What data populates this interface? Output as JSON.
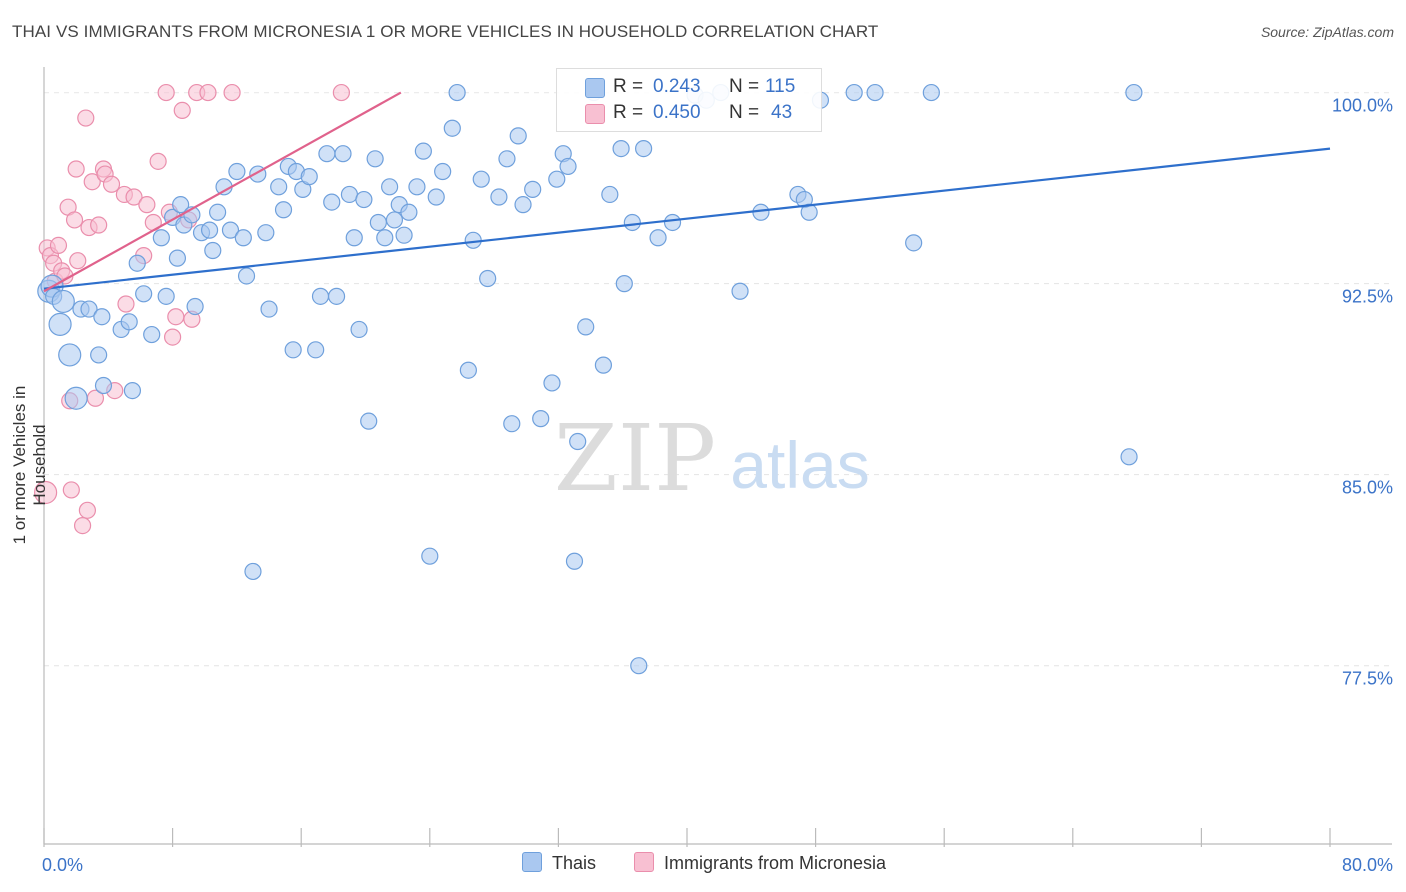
{
  "header": {
    "title": "THAI VS IMMIGRANTS FROM MICRONESIA 1 OR MORE VEHICLES IN HOUSEHOLD CORRELATION CHART",
    "source": "Source: ZipAtlas.com"
  },
  "legend_top": {
    "rows": [
      {
        "r_label": "R =",
        "r_value": "0.243",
        "n_label": "N =",
        "n_value": "115"
      },
      {
        "r_label": "R =",
        "r_value": "0.450",
        "n_label": "N =",
        "n_value": "43"
      }
    ]
  },
  "legend_bottom": {
    "items": [
      "Thais",
      "Immigrants from Micronesia"
    ]
  },
  "watermark": {
    "zip": "ZIP",
    "atlas": "atlas"
  },
  "colors": {
    "thais_fill": "#aac8f0",
    "thais_stroke": "#6fa0dc",
    "thais_line": "#2e6fcc",
    "micro_fill": "#f8c0d2",
    "micro_stroke": "#ea8eac",
    "micro_line": "#e0628c",
    "axis_text": "#3b73c8",
    "grid": "#e4e4e4"
  },
  "chart_data": {
    "type": "scatter",
    "title": "THAI VS IMMIGRANTS FROM MICRONESIA 1 OR MORE VEHICLES IN HOUSEHOLD CORRELATION CHART",
    "xlabel": "",
    "ylabel": "1 or more Vehicles in Household",
    "xlim": [
      0,
      80
    ],
    "ylim": [
      70.5,
      101.2
    ],
    "x_tick_labels": [
      "0.0%",
      "80.0%"
    ],
    "y_ticks": [
      77.5,
      85.0,
      92.5,
      100.0
    ],
    "y_tick_labels": [
      "77.5%",
      "85.0%",
      "92.5%",
      "100.0%"
    ],
    "series": [
      {
        "name": "Thais",
        "r": 0.243,
        "n": 115,
        "trend": {
          "x": [
            0,
            80
          ],
          "y": [
            92.3,
            97.8
          ]
        },
        "points": [
          [
            0.3,
            92.2,
            2
          ],
          [
            0.5,
            92.4,
            2
          ],
          [
            0.6,
            92.0,
            1
          ],
          [
            1.0,
            90.9,
            2
          ],
          [
            1.2,
            91.8,
            2
          ],
          [
            1.6,
            89.7,
            2
          ],
          [
            2.0,
            88.0,
            2
          ],
          [
            2.3,
            91.5,
            1
          ],
          [
            2.8,
            91.5,
            1
          ],
          [
            3.4,
            89.7,
            1
          ],
          [
            3.6,
            91.2,
            1
          ],
          [
            3.7,
            88.5,
            1
          ],
          [
            4.8,
            90.7,
            1
          ],
          [
            5.3,
            91.0,
            1
          ],
          [
            5.5,
            88.3,
            1
          ],
          [
            5.8,
            93.3,
            1
          ],
          [
            6.2,
            92.1,
            1
          ],
          [
            6.7,
            90.5,
            1
          ],
          [
            7.3,
            94.3,
            1
          ],
          [
            7.6,
            92.0,
            1
          ],
          [
            8.0,
            95.1,
            1
          ],
          [
            8.3,
            93.5,
            1
          ],
          [
            8.5,
            95.6,
            1
          ],
          [
            8.7,
            94.8,
            1
          ],
          [
            9.2,
            95.2,
            1
          ],
          [
            9.4,
            91.6,
            1
          ],
          [
            9.8,
            94.5,
            1
          ],
          [
            10.3,
            94.6,
            1
          ],
          [
            10.5,
            93.8,
            1
          ],
          [
            10.8,
            95.3,
            1
          ],
          [
            11.2,
            96.3,
            1
          ],
          [
            11.6,
            94.6,
            1
          ],
          [
            12.0,
            96.9,
            1
          ],
          [
            12.4,
            94.3,
            1
          ],
          [
            12.6,
            92.8,
            1
          ],
          [
            13.3,
            96.8,
            1
          ],
          [
            13.8,
            94.5,
            1
          ],
          [
            14.0,
            91.5,
            1
          ],
          [
            14.6,
            96.3,
            1
          ],
          [
            14.9,
            95.4,
            1
          ],
          [
            15.2,
            97.1,
            1
          ],
          [
            15.5,
            89.9,
            1
          ],
          [
            15.7,
            96.9,
            1
          ],
          [
            16.1,
            96.2,
            1
          ],
          [
            16.5,
            96.7,
            1
          ],
          [
            16.9,
            89.9,
            1
          ],
          [
            17.2,
            92.0,
            1
          ],
          [
            17.6,
            97.6,
            1
          ],
          [
            17.9,
            95.7,
            1
          ],
          [
            18.2,
            92.0,
            1
          ],
          [
            18.6,
            97.6,
            1
          ],
          [
            19.0,
            96.0,
            1
          ],
          [
            19.3,
            94.3,
            1
          ],
          [
            19.6,
            90.7,
            1
          ],
          [
            19.9,
            95.8,
            1
          ],
          [
            20.2,
            87.1,
            1
          ],
          [
            20.6,
            97.4,
            1
          ],
          [
            20.8,
            94.9,
            1
          ],
          [
            21.2,
            94.3,
            1
          ],
          [
            21.5,
            96.3,
            1
          ],
          [
            21.8,
            95.0,
            1
          ],
          [
            22.1,
            95.6,
            1
          ],
          [
            22.4,
            94.4,
            1
          ],
          [
            22.7,
            95.3,
            1
          ],
          [
            23.2,
            96.3,
            1
          ],
          [
            23.6,
            97.7,
            1
          ],
          [
            24.0,
            81.8,
            1
          ],
          [
            24.4,
            95.9,
            1
          ],
          [
            24.8,
            96.9,
            1
          ],
          [
            25.4,
            98.6,
            1
          ],
          [
            25.7,
            100.0,
            1
          ],
          [
            26.4,
            89.1,
            1
          ],
          [
            26.7,
            94.2,
            1
          ],
          [
            27.2,
            96.6,
            1
          ],
          [
            27.6,
            92.7,
            1
          ],
          [
            28.3,
            95.9,
            1
          ],
          [
            28.8,
            97.4,
            1
          ],
          [
            29.1,
            87.0,
            1
          ],
          [
            29.5,
            98.3,
            1
          ],
          [
            29.8,
            95.6,
            1
          ],
          [
            30.4,
            96.2,
            1
          ],
          [
            30.9,
            87.2,
            1
          ],
          [
            31.6,
            88.6,
            1
          ],
          [
            31.9,
            96.6,
            1
          ],
          [
            32.3,
            97.6,
            1
          ],
          [
            32.6,
            97.1,
            1
          ],
          [
            33.2,
            86.3,
            1
          ],
          [
            33.7,
            90.8,
            1
          ],
          [
            34.2,
            100.0,
            1
          ],
          [
            34.8,
            89.3,
            1
          ],
          [
            35.2,
            96.0,
            1
          ],
          [
            35.9,
            97.8,
            1
          ],
          [
            36.1,
            92.5,
            1
          ],
          [
            36.6,
            94.9,
            1
          ],
          [
            37.0,
            77.5,
            1
          ],
          [
            37.3,
            97.8,
            1
          ],
          [
            38.2,
            94.3,
            1
          ],
          [
            39.1,
            94.9,
            1
          ],
          [
            40.5,
            99.9,
            1
          ],
          [
            41.2,
            99.7,
            1
          ],
          [
            42.1,
            100.0,
            1
          ],
          [
            43.3,
            92.2,
            1
          ],
          [
            44.6,
            95.3,
            1
          ],
          [
            46.9,
            96.0,
            1
          ],
          [
            47.3,
            95.8,
            1
          ],
          [
            47.6,
            95.3,
            1
          ],
          [
            48.3,
            99.7,
            1
          ],
          [
            50.4,
            100.0,
            1
          ],
          [
            51.7,
            100.0,
            1
          ],
          [
            54.1,
            94.1,
            1
          ],
          [
            55.2,
            100.0,
            1
          ],
          [
            67.8,
            100.0,
            1
          ],
          [
            67.5,
            85.7,
            1
          ],
          [
            13.0,
            81.2,
            1
          ],
          [
            33.0,
            81.6,
            1
          ]
        ]
      },
      {
        "name": "Immigrants from Micronesia",
        "r": 0.45,
        "n": 43,
        "trend": {
          "x": [
            0,
            22.2
          ],
          "y": [
            92.2,
            100.0
          ]
        },
        "points": [
          [
            0.1,
            84.3,
            2
          ],
          [
            0.2,
            93.9,
            1
          ],
          [
            0.4,
            93.6,
            1
          ],
          [
            0.6,
            93.3,
            1
          ],
          [
            0.7,
            92.6,
            1
          ],
          [
            0.9,
            94.0,
            1
          ],
          [
            1.1,
            93.0,
            1
          ],
          [
            1.3,
            92.8,
            1
          ],
          [
            1.5,
            95.5,
            1
          ],
          [
            1.6,
            87.9,
            1
          ],
          [
            1.7,
            84.4,
            1
          ],
          [
            1.9,
            95.0,
            1
          ],
          [
            2.1,
            93.4,
            1
          ],
          [
            2.4,
            83.0,
            1
          ],
          [
            2.6,
            99.0,
            1
          ],
          [
            2.7,
            83.6,
            1
          ],
          [
            2.0,
            97.0,
            1
          ],
          [
            2.8,
            94.7,
            1
          ],
          [
            3.0,
            96.5,
            1
          ],
          [
            3.2,
            88.0,
            1
          ],
          [
            3.4,
            94.8,
            1
          ],
          [
            3.7,
            97.0,
            1
          ],
          [
            3.8,
            96.8,
            1
          ],
          [
            4.2,
            96.4,
            1
          ],
          [
            4.4,
            88.3,
            1
          ],
          [
            5.0,
            96.0,
            1
          ],
          [
            5.1,
            91.7,
            1
          ],
          [
            5.6,
            95.9,
            1
          ],
          [
            6.2,
            93.6,
            1
          ],
          [
            6.4,
            95.6,
            1
          ],
          [
            6.8,
            94.9,
            1
          ],
          [
            7.1,
            97.3,
            1
          ],
          [
            7.6,
            100.0,
            1
          ],
          [
            7.8,
            95.3,
            1
          ],
          [
            8.0,
            90.4,
            1
          ],
          [
            8.2,
            91.2,
            1
          ],
          [
            8.6,
            99.3,
            1
          ],
          [
            9.2,
            91.1,
            1
          ],
          [
            9.5,
            100.0,
            1
          ],
          [
            10.2,
            100.0,
            1
          ],
          [
            11.7,
            100.0,
            1
          ],
          [
            18.5,
            100.0,
            1
          ],
          [
            9.0,
            95.0,
            1
          ]
        ]
      }
    ]
  }
}
